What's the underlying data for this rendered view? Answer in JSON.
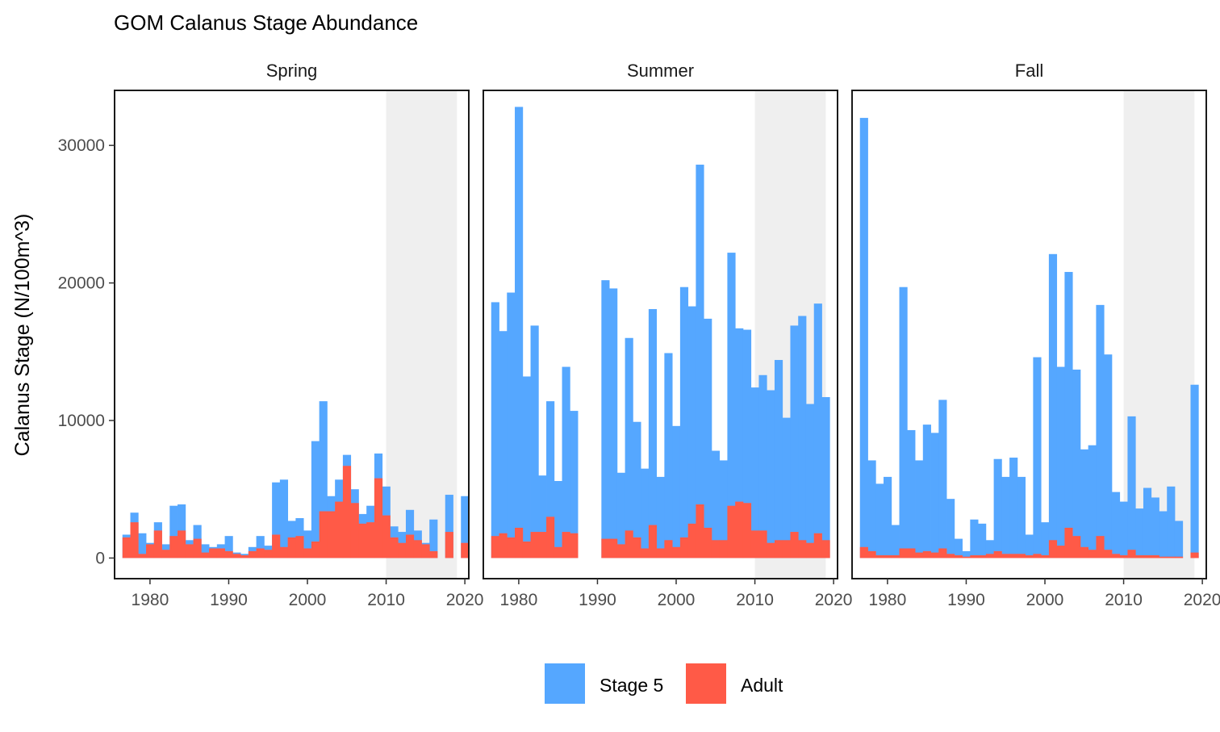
{
  "chart_data": {
    "type": "bar",
    "stacking": "overlaid",
    "title": "GOM Calanus Stage Abundance",
    "xlabel": "",
    "ylabel": "Calanus Stage (N/100m^3)",
    "xlim": [
      1975.5,
      2020.5
    ],
    "ylim": [
      -1500,
      34000
    ],
    "x_ticks": [
      "1980",
      "1990",
      "2000",
      "2010",
      "2020"
    ],
    "y_ticks": [
      "0",
      "10000",
      "20000",
      "30000"
    ],
    "grid": false,
    "legend_position": "bottom",
    "highlight_range": [
      2010,
      2019
    ],
    "colors": {
      "Stage 5": "#55a7ff",
      "Adult": "#ff5a47",
      "highlight": "#efefef"
    },
    "series_names": [
      "Stage 5",
      "Adult"
    ],
    "panels": [
      {
        "label": "Spring",
        "stage5": [
          [
            1977,
            1700
          ],
          [
            1978,
            3300
          ],
          [
            1979,
            1800
          ],
          [
            1980,
            1100
          ],
          [
            1981,
            2600
          ],
          [
            1982,
            1000
          ],
          [
            1983,
            3800
          ],
          [
            1984,
            3900
          ],
          [
            1985,
            1300
          ],
          [
            1986,
            2400
          ],
          [
            1987,
            1000
          ],
          [
            1988,
            800
          ],
          [
            1989,
            1000
          ],
          [
            1990,
            1600
          ],
          [
            1991,
            400
          ],
          [
            1992,
            300
          ],
          [
            1993,
            800
          ],
          [
            1994,
            1600
          ],
          [
            1995,
            900
          ],
          [
            1996,
            5500
          ],
          [
            1997,
            5700
          ],
          [
            1998,
            2700
          ],
          [
            1999,
            2900
          ],
          [
            2000,
            2000
          ],
          [
            2001,
            8500
          ],
          [
            2002,
            11400
          ],
          [
            2003,
            4500
          ],
          [
            2004,
            5700
          ],
          [
            2005,
            7500
          ],
          [
            2006,
            5000
          ],
          [
            2007,
            3200
          ],
          [
            2008,
            3800
          ],
          [
            2009,
            7600
          ],
          [
            2010,
            5200
          ],
          [
            2011,
            2300
          ],
          [
            2012,
            1900
          ],
          [
            2013,
            3500
          ],
          [
            2014,
            2000
          ],
          [
            2015,
            1100
          ],
          [
            2016,
            2800
          ],
          [
            2018,
            4600
          ],
          [
            2020,
            4500
          ]
        ],
        "adult": [
          [
            1977,
            1500
          ],
          [
            1978,
            2600
          ],
          [
            1979,
            300
          ],
          [
            1980,
            1000
          ],
          [
            1981,
            2000
          ],
          [
            1982,
            600
          ],
          [
            1983,
            1600
          ],
          [
            1984,
            2000
          ],
          [
            1985,
            1000
          ],
          [
            1986,
            1400
          ],
          [
            1987,
            400
          ],
          [
            1988,
            700
          ],
          [
            1989,
            700
          ],
          [
            1990,
            500
          ],
          [
            1991,
            300
          ],
          [
            1992,
            200
          ],
          [
            1993,
            500
          ],
          [
            1994,
            700
          ],
          [
            1995,
            600
          ],
          [
            1996,
            1700
          ],
          [
            1997,
            800
          ],
          [
            1998,
            1500
          ],
          [
            1999,
            1600
          ],
          [
            2000,
            700
          ],
          [
            2001,
            1200
          ],
          [
            2002,
            3400
          ],
          [
            2003,
            3400
          ],
          [
            2004,
            4100
          ],
          [
            2005,
            6700
          ],
          [
            2006,
            4000
          ],
          [
            2007,
            2500
          ],
          [
            2008,
            2600
          ],
          [
            2009,
            5800
          ],
          [
            2010,
            3100
          ],
          [
            2011,
            1500
          ],
          [
            2012,
            1100
          ],
          [
            2013,
            1700
          ],
          [
            2014,
            1300
          ],
          [
            2015,
            1000
          ],
          [
            2016,
            500
          ],
          [
            2018,
            1900
          ],
          [
            2020,
            1100
          ]
        ]
      },
      {
        "label": "Summer",
        "stage5": [
          [
            1977,
            18600
          ],
          [
            1978,
            16500
          ],
          [
            1979,
            19300
          ],
          [
            1980,
            32800
          ],
          [
            1981,
            13200
          ],
          [
            1982,
            16900
          ],
          [
            1983,
            6000
          ],
          [
            1984,
            11400
          ],
          [
            1985,
            5600
          ],
          [
            1986,
            13900
          ],
          [
            1987,
            10700
          ],
          [
            1991,
            20200
          ],
          [
            1992,
            19600
          ],
          [
            1993,
            6200
          ],
          [
            1994,
            16000
          ],
          [
            1995,
            9900
          ],
          [
            1996,
            6500
          ],
          [
            1997,
            18100
          ],
          [
            1998,
            5900
          ],
          [
            1999,
            14900
          ],
          [
            2000,
            9600
          ],
          [
            2001,
            19700
          ],
          [
            2002,
            18300
          ],
          [
            2003,
            28600
          ],
          [
            2004,
            17400
          ],
          [
            2005,
            7800
          ],
          [
            2006,
            7100
          ],
          [
            2007,
            22200
          ],
          [
            2008,
            16700
          ],
          [
            2009,
            16600
          ],
          [
            2010,
            12400
          ],
          [
            2011,
            13300
          ],
          [
            2012,
            12200
          ],
          [
            2013,
            14400
          ],
          [
            2014,
            10200
          ],
          [
            2015,
            16900
          ],
          [
            2016,
            17600
          ],
          [
            2017,
            11200
          ],
          [
            2018,
            18500
          ],
          [
            2019,
            11700
          ]
        ],
        "adult": [
          [
            1977,
            1600
          ],
          [
            1978,
            1800
          ],
          [
            1979,
            1500
          ],
          [
            1980,
            2200
          ],
          [
            1981,
            1200
          ],
          [
            1982,
            1900
          ],
          [
            1983,
            1900
          ],
          [
            1984,
            3000
          ],
          [
            1985,
            800
          ],
          [
            1986,
            1900
          ],
          [
            1987,
            1800
          ],
          [
            1991,
            1400
          ],
          [
            1992,
            1400
          ],
          [
            1993,
            1000
          ],
          [
            1994,
            2000
          ],
          [
            1995,
            1500
          ],
          [
            1996,
            700
          ],
          [
            1997,
            2400
          ],
          [
            1998,
            700
          ],
          [
            1999,
            1300
          ],
          [
            2000,
            800
          ],
          [
            2001,
            1500
          ],
          [
            2002,
            2500
          ],
          [
            2003,
            3900
          ],
          [
            2004,
            2200
          ],
          [
            2005,
            1300
          ],
          [
            2006,
            1300
          ],
          [
            2007,
            3800
          ],
          [
            2008,
            4100
          ],
          [
            2009,
            4000
          ],
          [
            2010,
            2000
          ],
          [
            2011,
            2000
          ],
          [
            2012,
            1100
          ],
          [
            2013,
            1300
          ],
          [
            2014,
            1300
          ],
          [
            2015,
            1900
          ],
          [
            2016,
            1300
          ],
          [
            2017,
            1100
          ],
          [
            2018,
            1800
          ],
          [
            2019,
            1300
          ]
        ]
      },
      {
        "label": "Fall",
        "stage5": [
          [
            1977,
            32000
          ],
          [
            1978,
            7100
          ],
          [
            1979,
            5400
          ],
          [
            1980,
            5900
          ],
          [
            1981,
            2400
          ],
          [
            1982,
            19700
          ],
          [
            1983,
            9300
          ],
          [
            1984,
            7100
          ],
          [
            1985,
            9700
          ],
          [
            1986,
            9100
          ],
          [
            1987,
            11500
          ],
          [
            1988,
            4300
          ],
          [
            1989,
            1400
          ],
          [
            1990,
            500
          ],
          [
            1991,
            2800
          ],
          [
            1992,
            2500
          ],
          [
            1993,
            1300
          ],
          [
            1994,
            7200
          ],
          [
            1995,
            5900
          ],
          [
            1996,
            7300
          ],
          [
            1997,
            5900
          ],
          [
            1998,
            1700
          ],
          [
            1999,
            14600
          ],
          [
            2000,
            2600
          ],
          [
            2001,
            22100
          ],
          [
            2002,
            13900
          ],
          [
            2003,
            20800
          ],
          [
            2004,
            13700
          ],
          [
            2005,
            7900
          ],
          [
            2006,
            8200
          ],
          [
            2007,
            18400
          ],
          [
            2008,
            14800
          ],
          [
            2009,
            4800
          ],
          [
            2010,
            4100
          ],
          [
            2011,
            10300
          ],
          [
            2012,
            3600
          ],
          [
            2013,
            5100
          ],
          [
            2014,
            4400
          ],
          [
            2015,
            3400
          ],
          [
            2016,
            5200
          ],
          [
            2017,
            2700
          ],
          [
            2019,
            12600
          ]
        ],
        "adult": [
          [
            1977,
            800
          ],
          [
            1978,
            500
          ],
          [
            1979,
            200
          ],
          [
            1980,
            200
          ],
          [
            1981,
            200
          ],
          [
            1982,
            700
          ],
          [
            1983,
            700
          ],
          [
            1984,
            400
          ],
          [
            1985,
            500
          ],
          [
            1986,
            400
          ],
          [
            1987,
            700
          ],
          [
            1988,
            300
          ],
          [
            1989,
            200
          ],
          [
            1990,
            100
          ],
          [
            1991,
            200
          ],
          [
            1992,
            200
          ],
          [
            1993,
            300
          ],
          [
            1994,
            500
          ],
          [
            1995,
            300
          ],
          [
            1996,
            300
          ],
          [
            1997,
            300
          ],
          [
            1998,
            200
          ],
          [
            1999,
            300
          ],
          [
            2000,
            200
          ],
          [
            2001,
            1300
          ],
          [
            2002,
            900
          ],
          [
            2003,
            2200
          ],
          [
            2004,
            1600
          ],
          [
            2005,
            800
          ],
          [
            2006,
            600
          ],
          [
            2007,
            1600
          ],
          [
            2008,
            600
          ],
          [
            2009,
            300
          ],
          [
            2010,
            200
          ],
          [
            2011,
            600
          ],
          [
            2012,
            200
          ],
          [
            2013,
            200
          ],
          [
            2014,
            200
          ],
          [
            2015,
            100
          ],
          [
            2016,
            100
          ],
          [
            2017,
            100
          ],
          [
            2019,
            400
          ]
        ]
      }
    ]
  }
}
